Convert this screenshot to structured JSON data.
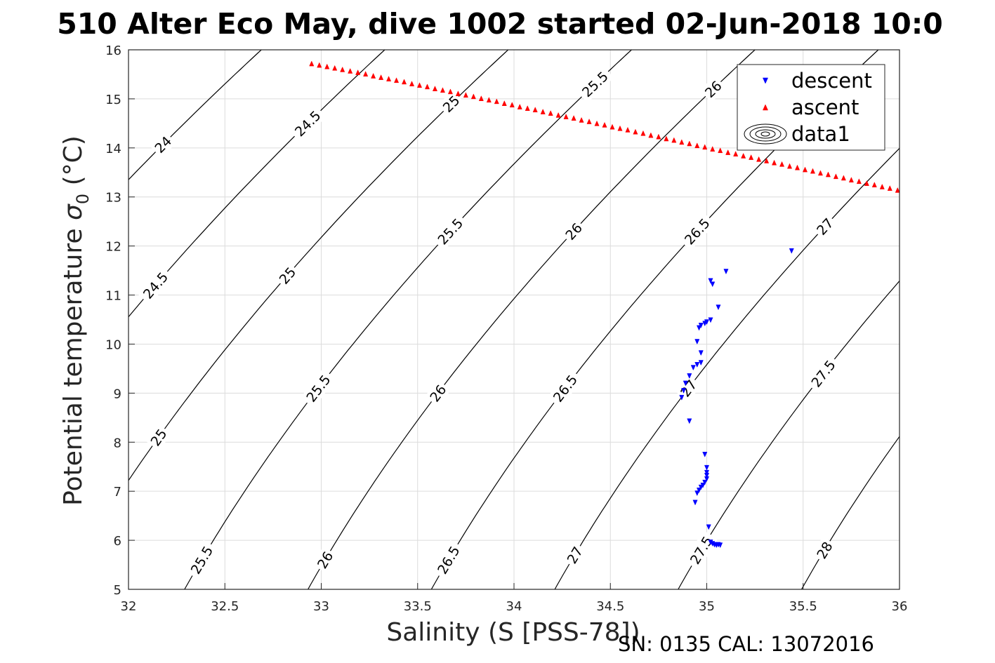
{
  "chart_data": {
    "type": "scatter",
    "title": "510 Alter Eco May, dive 1002 started 02-Jun-2018 10:0",
    "xlabel": "Salinity (S [PSS-78])",
    "ylabel_main": "Potential temperature ",
    "ylabel_sigma": "σ",
    "ylabel_sub": "0",
    "ylabel_unit": " (°C)",
    "footer": "SN: 0135  CAL: 13072016",
    "xlim": [
      32,
      36
    ],
    "ylim": [
      5,
      16
    ],
    "xticks": [
      "32",
      "32.5",
      "33",
      "33.5",
      "34",
      "34.5",
      "35",
      "35.5",
      "36"
    ],
    "yticks": [
      "5",
      "6",
      "7",
      "8",
      "9",
      "10",
      "11",
      "12",
      "13",
      "14",
      "15",
      "16"
    ],
    "grid": true,
    "legend_position": "top-right",
    "legend": [
      {
        "label": "descent",
        "marker": "triangle-down",
        "color": "#0000ff"
      },
      {
        "label": "ascent",
        "marker": "triangle-up",
        "color": "#ff0000"
      },
      {
        "label": "data1",
        "marker": "contour",
        "color": "#000000"
      }
    ],
    "contour_levels": [
      24,
      24.5,
      25,
      25.5,
      26,
      26.5,
      27,
      27.5,
      28
    ],
    "contour_labels": [
      {
        "text": "24",
        "s": 32.18,
        "t": 14.07
      },
      {
        "text": "24.5",
        "s": 33.0,
        "t": 14.5
      },
      {
        "text": "25",
        "s": 33.6,
        "t": 14.9
      },
      {
        "text": "25.5",
        "s": 34.47,
        "t": 15.3
      },
      {
        "text": "26",
        "s": 35.09,
        "t": 15.2
      },
      {
        "text": "24.5",
        "s": 32.18,
        "t": 11.2
      },
      {
        "text": "25",
        "s": 32.83,
        "t": 11.4
      },
      {
        "text": "25.5",
        "s": 33.68,
        "t": 12.3
      },
      {
        "text": "26",
        "s": 34.31,
        "t": 12.3
      },
      {
        "text": "26.5",
        "s": 34.96,
        "t": 12.3
      },
      {
        "text": "27",
        "s": 35.61,
        "t": 12.4
      },
      {
        "text": "25",
        "s": 32.12,
        "t": 8.1
      },
      {
        "text": "25.5",
        "s": 32.94,
        "t": 9.1
      },
      {
        "text": "26",
        "s": 33.58,
        "t": 9.0
      },
      {
        "text": "26.5",
        "s": 34.24,
        "t": 9.1
      },
      {
        "text": "27",
        "s": 34.87,
        "t": 9.1
      },
      {
        "text": "27.5",
        "s": 35.55,
        "t": 9.4
      },
      {
        "text": "25.5",
        "s": 32.32,
        "t": 5.6
      },
      {
        "text": "26",
        "s": 32.97,
        "t": 5.6
      },
      {
        "text": "26.5",
        "s": 33.63,
        "t": 5.6
      },
      {
        "text": "27",
        "s": 34.24,
        "t": 5.7
      },
      {
        "text": "27.5",
        "s": 34.88,
        "t": 5.8
      },
      {
        "text": "28",
        "s": 35.53,
        "t": 5.8
      }
    ],
    "series": [
      {
        "name": "descent",
        "marker": "triangle-down",
        "color": "#0000ff",
        "points": [
          [
            35.44,
            11.9
          ],
          [
            35.1,
            11.48
          ],
          [
            35.02,
            11.29
          ],
          [
            35.03,
            11.22
          ],
          [
            35.06,
            10.75
          ],
          [
            35.02,
            10.49
          ],
          [
            35.0,
            10.45
          ],
          [
            34.99,
            10.42
          ],
          [
            34.97,
            10.38
          ],
          [
            34.96,
            10.33
          ],
          [
            34.95,
            10.05
          ],
          [
            34.97,
            9.82
          ],
          [
            34.97,
            9.62
          ],
          [
            34.95,
            9.58
          ],
          [
            34.93,
            9.52
          ],
          [
            34.91,
            9.35
          ],
          [
            34.89,
            9.2
          ],
          [
            34.88,
            9.05
          ],
          [
            34.87,
            8.91
          ],
          [
            34.91,
            8.43
          ],
          [
            34.99,
            7.75
          ],
          [
            35.0,
            7.48
          ],
          [
            35.0,
            7.38
          ],
          [
            35.0,
            7.32
          ],
          [
            35.0,
            7.25
          ],
          [
            34.99,
            7.18
          ],
          [
            34.98,
            7.12
          ],
          [
            34.97,
            7.08
          ],
          [
            34.96,
            7.02
          ],
          [
            34.95,
            6.96
          ],
          [
            34.94,
            6.77
          ],
          [
            35.01,
            6.27
          ],
          [
            35.02,
            5.96
          ],
          [
            35.03,
            5.93
          ],
          [
            35.04,
            5.91
          ],
          [
            35.05,
            5.9
          ],
          [
            35.06,
            5.91
          ],
          [
            35.07,
            5.9
          ]
        ]
      },
      {
        "name": "ascent",
        "marker": "triangle-up",
        "color": "#ff0000",
        "points": [
          [
            32.95,
            15.72
          ],
          [
            32.99,
            15.69
          ],
          [
            33.03,
            15.66
          ],
          [
            33.07,
            15.63
          ],
          [
            33.11,
            15.6
          ],
          [
            33.15,
            15.57
          ],
          [
            33.19,
            15.54
          ],
          [
            33.23,
            15.51
          ],
          [
            33.27,
            15.47
          ],
          [
            33.31,
            15.44
          ],
          [
            33.35,
            15.41
          ],
          [
            33.39,
            15.38
          ],
          [
            33.43,
            15.35
          ],
          [
            33.47,
            15.31
          ],
          [
            33.51,
            15.28
          ],
          [
            33.55,
            15.25
          ],
          [
            33.59,
            15.21
          ],
          [
            33.63,
            15.18
          ],
          [
            33.67,
            15.15
          ],
          [
            33.71,
            15.11
          ],
          [
            33.75,
            15.08
          ],
          [
            33.79,
            15.05
          ],
          [
            33.83,
            15.01
          ],
          [
            33.87,
            14.98
          ],
          [
            33.91,
            14.95
          ],
          [
            33.95,
            14.91
          ],
          [
            33.99,
            14.88
          ],
          [
            34.03,
            14.84
          ],
          [
            34.07,
            14.81
          ],
          [
            34.11,
            14.78
          ],
          [
            34.15,
            14.74
          ],
          [
            34.19,
            14.71
          ],
          [
            34.23,
            14.67
          ],
          [
            34.27,
            14.64
          ],
          [
            34.31,
            14.61
          ],
          [
            34.35,
            14.57
          ],
          [
            34.39,
            14.54
          ],
          [
            34.43,
            14.5
          ],
          [
            34.47,
            14.47
          ],
          [
            34.51,
            14.43
          ],
          [
            34.55,
            14.4
          ],
          [
            34.59,
            14.37
          ],
          [
            34.63,
            14.33
          ],
          [
            34.67,
            14.3
          ],
          [
            34.71,
            14.26
          ],
          [
            34.75,
            14.23
          ],
          [
            34.79,
            14.19
          ],
          [
            34.83,
            14.16
          ],
          [
            34.87,
            14.12
          ],
          [
            34.91,
            14.09
          ],
          [
            34.95,
            14.05
          ],
          [
            34.99,
            14.02
          ],
          [
            35.03,
            13.98
          ],
          [
            35.07,
            13.95
          ],
          [
            35.11,
            13.91
          ],
          [
            35.15,
            13.88
          ],
          [
            35.19,
            13.84
          ],
          [
            35.23,
            13.81
          ],
          [
            35.27,
            13.77
          ],
          [
            35.31,
            13.74
          ],
          [
            35.35,
            13.7
          ],
          [
            35.39,
            13.67
          ],
          [
            35.43,
            13.63
          ],
          [
            35.47,
            13.6
          ],
          [
            35.51,
            13.56
          ],
          [
            35.55,
            13.53
          ],
          [
            35.59,
            13.49
          ],
          [
            35.63,
            13.46
          ],
          [
            35.67,
            13.42
          ],
          [
            35.71,
            13.39
          ],
          [
            35.75,
            13.35
          ],
          [
            35.79,
            13.32
          ],
          [
            35.83,
            13.28
          ],
          [
            35.87,
            13.25
          ],
          [
            35.91,
            13.21
          ],
          [
            35.95,
            13.18
          ],
          [
            35.99,
            13.14
          ]
        ]
      }
    ]
  }
}
